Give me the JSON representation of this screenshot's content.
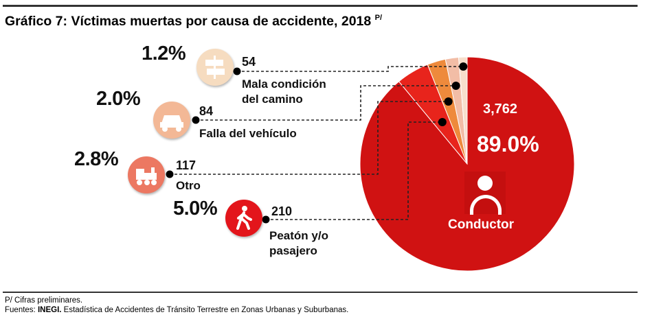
{
  "title": "Gráfico 7: Víctimas muertas por causa de accidente, 2018",
  "title_superscript": "P/",
  "chart_data": {
    "type": "pie",
    "title": "Víctimas muertas por causa de accidente, 2018",
    "start": "top",
    "slices": [
      {
        "name": "Conductor",
        "value": 3762,
        "value_label": "3,762",
        "percent_label": "89.0%",
        "color": "#d01212",
        "icon": "driver-icon"
      },
      {
        "name": "Peatón y/o pasajero",
        "value": 210,
        "value_label": "210",
        "percent_label": "5.0%",
        "color": "#e8241c",
        "icon": "pedestrian-icon"
      },
      {
        "name": "Otro",
        "value": 117,
        "value_label": "117",
        "percent_label": "2.8%",
        "color": "#ee8a3c",
        "icon": "train-icon"
      },
      {
        "name": "Falla del vehículo",
        "value": 84,
        "value_label": "84",
        "percent_label": "2.0%",
        "color": "#f2bda6",
        "icon": "car-icon"
      },
      {
        "name": "Mala condición del camino",
        "value": 54,
        "value_label": "54",
        "percent_label": "1.2%",
        "color": "#f7dfcc",
        "icon": "road-sign-icon"
      }
    ],
    "labels": {
      "mala_l1": "Mala condición",
      "mala_l2": "del camino",
      "peaton_l1": "Peatón y/o",
      "peaton_l2": "pasajero"
    },
    "icon_colors": {
      "mala": "#f6dcc0",
      "falla": "#f3b896",
      "otro": "#ec7862",
      "peaton": "#e3151b"
    }
  },
  "footer": {
    "note": "P/ Cifras preliminares.",
    "source_prefix": "Fuentes: ",
    "source_org": "INEGI.",
    "source_text": " Estadística de Accidentes de Tránsito Terrestre en Zonas Urbanas y Suburbanas."
  }
}
